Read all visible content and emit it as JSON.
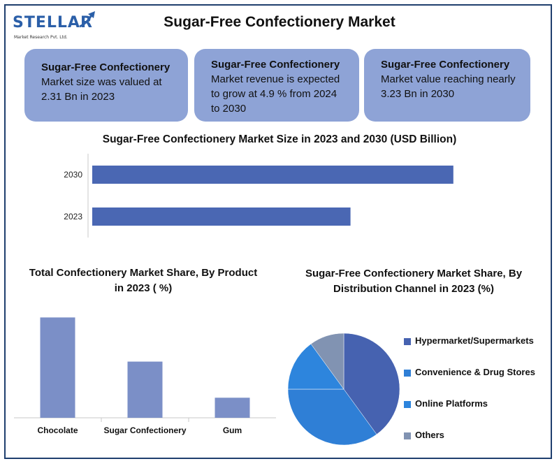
{
  "header": {
    "logo_text": "STELLAR",
    "logo_subtitle": "Market Research Pvt. Ltd.",
    "title": "Sugar-Free Confectionery Market"
  },
  "cards": [
    {
      "title": "Sugar-Free Confectionery",
      "text": "Market size was valued at 2.31 Bn in 2023"
    },
    {
      "title": "Sugar-Free Confectionery",
      "text": "Market revenue is expected to grow at 4.9 % from 2024 to 2030"
    },
    {
      "title": "Sugar-Free Confectionery",
      "text": "Market value reaching nearly 3.23 Bn in 2030"
    }
  ],
  "colors": {
    "card_bg": "#8ea3d6",
    "bar_primary": "#4a67b3",
    "bar_product": "#7b8fc7",
    "pie": [
      "#4662b0",
      "#2f7fd6",
      "#2d85dd",
      "#8193b2"
    ]
  },
  "chart_data": [
    {
      "type": "bar",
      "orientation": "horizontal",
      "title": "Sugar-Free Confectionery Market Size in 2023 and 2030 (USD Billion)",
      "categories": [
        "2030",
        "2023"
      ],
      "values": [
        3.23,
        2.31
      ],
      "xlim": [
        0,
        3.3
      ],
      "grid": false
    },
    {
      "type": "bar",
      "title": "Total Confectionery Market Share, By Product in 2023 ( %)",
      "categories": [
        "Chocolate",
        "Sugar Confectionery",
        "Gum"
      ],
      "values": [
        50,
        28,
        10
      ],
      "ylim": [
        0,
        55
      ],
      "grid": false
    },
    {
      "type": "pie",
      "title": "Sugar-Free Confectionery Market Share, By Distribution Channel in 2023 (%)",
      "labels": [
        "Hypermarket/Supermarkets",
        "Convenience & Drug Stores",
        "Online Platforms",
        "Others"
      ],
      "values": [
        40,
        35,
        15,
        10
      ],
      "legend": "right"
    }
  ]
}
